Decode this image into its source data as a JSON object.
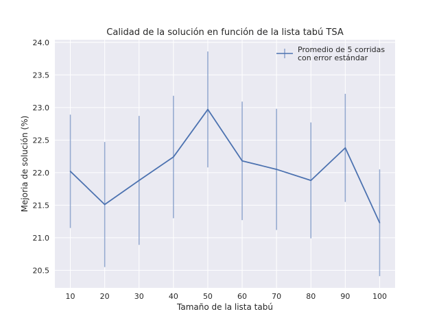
{
  "chart_data": {
    "type": "line",
    "title": "Calidad de la solución en función de la lista tabú TSA",
    "xlabel": "Tamaño de la lista tabú",
    "ylabel": "Mejoria de solución (%)",
    "x": [
      10,
      20,
      30,
      40,
      50,
      60,
      70,
      80,
      90,
      100
    ],
    "xticks": [
      "10",
      "20",
      "30",
      "40",
      "50",
      "60",
      "70",
      "80",
      "90",
      "100"
    ],
    "xlim": [
      5.5,
      104.5
    ],
    "ylim": [
      20.23,
      24.04
    ],
    "yticks": [
      "20.5",
      "21.0",
      "21.5",
      "22.0",
      "22.5",
      "23.0",
      "23.5",
      "24.0"
    ],
    "grid": true,
    "legend_position": "top-right",
    "series": [
      {
        "name": "Promedio de 5 corridas\ncon error estándar",
        "color": "#4c72b0",
        "values": [
          22.02,
          21.51,
          21.88,
          22.24,
          22.97,
          22.18,
          22.05,
          21.88,
          22.38,
          21.23
        ],
        "error": [
          0.87,
          0.96,
          0.99,
          0.94,
          0.89,
          0.91,
          0.93,
          0.89,
          0.83,
          0.82
        ]
      }
    ]
  }
}
